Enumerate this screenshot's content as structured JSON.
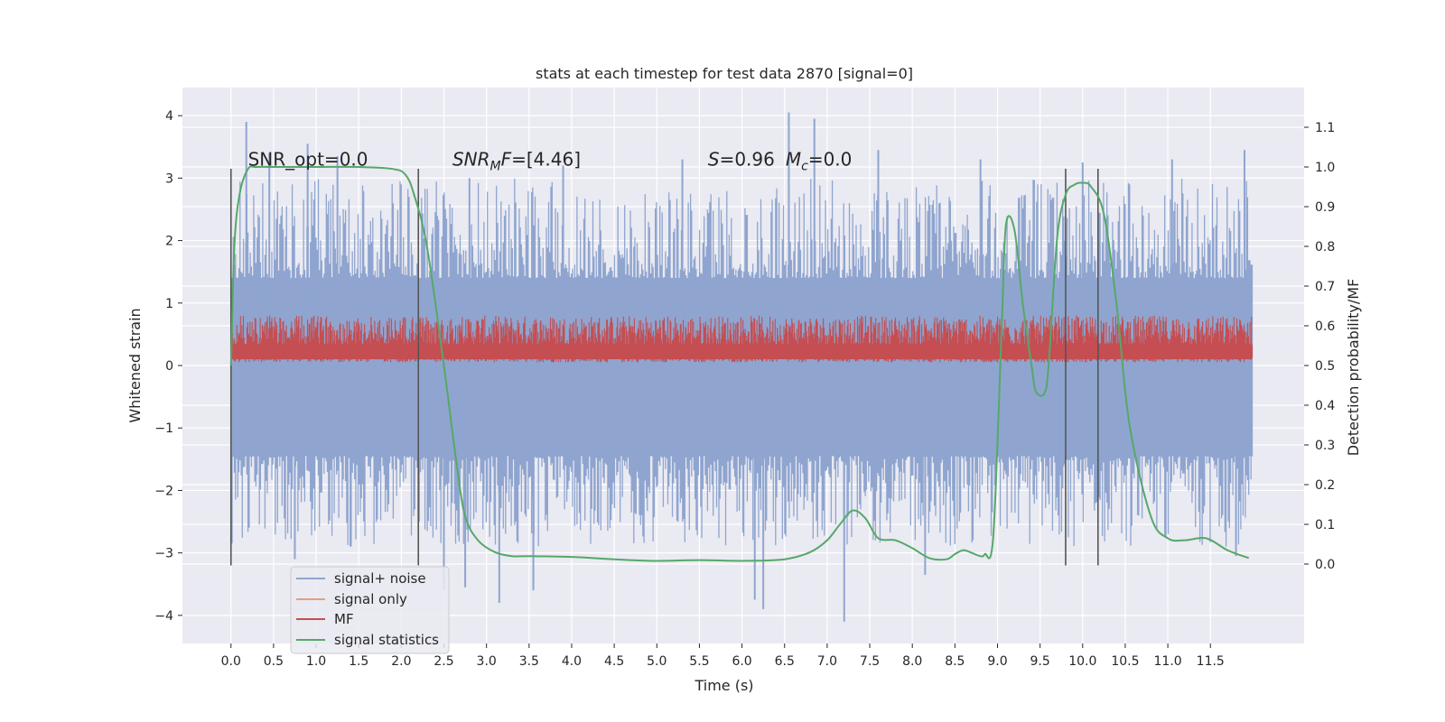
{
  "chart_data": {
    "type": "line",
    "title": "stats at each timestep for test data 2870 [signal=0]",
    "xlabel": "Time (s)",
    "ylabel": "Whitened strain",
    "ylabel_right": "Detection probability/MF",
    "xlim": [
      -0.57,
      12.6
    ],
    "ylim": [
      -4.45,
      4.45
    ],
    "ylim_right": [
      -0.2,
      1.2
    ],
    "x_ticks": [
      0.0,
      0.5,
      1.0,
      1.5,
      2.0,
      2.5,
      3.0,
      3.5,
      4.0,
      4.5,
      5.0,
      5.5,
      6.0,
      6.5,
      7.0,
      7.5,
      8.0,
      8.5,
      9.0,
      9.5,
      10.0,
      10.5,
      11.0,
      11.5
    ],
    "x_tick_labels": [
      "0.0",
      "0.5",
      "1.0",
      "1.5",
      "2.0",
      "2.5",
      "3.0",
      "3.5",
      "4.0",
      "4.5",
      "5.0",
      "5.5",
      "6.0",
      "6.5",
      "7.0",
      "7.5",
      "8.0",
      "8.5",
      "9.0",
      "9.5",
      "10.0",
      "10.5",
      "11.0",
      "11.5"
    ],
    "y_ticks": [
      -4,
      -3,
      -2,
      -1,
      0,
      1,
      2,
      3,
      4
    ],
    "y_tick_labels": [
      "−4",
      "−3",
      "−2",
      "−1",
      "0",
      "1",
      "2",
      "3",
      "4"
    ],
    "y_right_ticks": [
      0.0,
      0.1,
      0.2,
      0.3,
      0.4,
      0.5,
      0.6,
      0.7,
      0.8,
      0.9,
      1.0,
      1.1
    ],
    "y_right_tick_labels": [
      "0.0",
      "0.1",
      "0.2",
      "0.3",
      "0.4",
      "0.5",
      "0.6",
      "0.7",
      "0.8",
      "0.9",
      "1.0",
      "1.1"
    ],
    "grid": true,
    "legend_position": "lower-left",
    "series": [
      {
        "name": "signal+ noise",
        "color": "#8fa5cf",
        "axis": "left",
        "x_range": [
          0.0,
          11.99
        ],
        "envelope_upper": 1.3,
        "envelope_lower": -1.35,
        "peaks": [
          [
            0.18,
            3.9
          ],
          [
            0.45,
            3.4
          ],
          [
            0.9,
            3.55
          ],
          [
            1.25,
            3.35
          ],
          [
            2.8,
            3.0
          ],
          [
            3.9,
            3.2
          ],
          [
            5.3,
            3.3
          ],
          [
            6.55,
            4.05
          ],
          [
            6.85,
            3.95
          ],
          [
            7.6,
            3.45
          ],
          [
            8.8,
            3.3
          ],
          [
            10.0,
            3.25
          ],
          [
            11.05,
            3.3
          ],
          [
            11.9,
            3.45
          ]
        ],
        "troughs": [
          [
            0.75,
            -3.1
          ],
          [
            2.5,
            -3.6
          ],
          [
            2.75,
            -3.55
          ],
          [
            3.15,
            -3.8
          ],
          [
            3.55,
            -3.6
          ],
          [
            6.15,
            -3.75
          ],
          [
            6.25,
            -3.9
          ],
          [
            7.2,
            -4.1
          ],
          [
            8.15,
            -3.35
          ],
          [
            11.8,
            -3.05
          ]
        ]
      },
      {
        "name": "signal only",
        "color": "#e69e7e",
        "axis": "left",
        "x": [],
        "values": []
      },
      {
        "name": "MF",
        "color": "#c44e52",
        "axis": "left",
        "x_range": [
          0.0,
          11.99
        ],
        "band_lower": 0.05,
        "band_upper": 0.55,
        "max_peak": 0.8
      },
      {
        "name": "signal statistics",
        "color": "#55a868",
        "axis": "right",
        "x": [
          0.0,
          0.04,
          0.1,
          0.2,
          0.3,
          0.5,
          1.0,
          1.5,
          1.9,
          2.05,
          2.15,
          2.3,
          2.5,
          2.65,
          2.75,
          2.9,
          3.1,
          3.3,
          3.5,
          4.0,
          4.5,
          5.0,
          5.5,
          6.0,
          6.5,
          6.8,
          7.0,
          7.15,
          7.3,
          7.45,
          7.6,
          7.8,
          8.0,
          8.2,
          8.4,
          8.5,
          8.6,
          8.7,
          8.8,
          8.85,
          8.95,
          9.05,
          9.1,
          9.2,
          9.3,
          9.4,
          9.45,
          9.55,
          9.6,
          9.7,
          9.8,
          9.9,
          10.0,
          10.1,
          10.25,
          10.4,
          10.55,
          10.8,
          11.0,
          11.2,
          11.45,
          11.7,
          11.95
        ],
        "values": [
          0.5,
          0.8,
          0.93,
          0.995,
          1.0,
          1.0,
          1.0,
          1.0,
          0.995,
          0.98,
          0.93,
          0.8,
          0.5,
          0.25,
          0.12,
          0.06,
          0.03,
          0.02,
          0.02,
          0.018,
          0.012,
          0.008,
          0.01,
          0.008,
          0.012,
          0.03,
          0.06,
          0.1,
          0.135,
          0.115,
          0.065,
          0.06,
          0.04,
          0.015,
          0.012,
          0.025,
          0.035,
          0.028,
          0.02,
          0.025,
          0.07,
          0.6,
          0.855,
          0.84,
          0.65,
          0.5,
          0.435,
          0.43,
          0.5,
          0.82,
          0.93,
          0.955,
          0.96,
          0.95,
          0.88,
          0.65,
          0.35,
          0.12,
          0.065,
          0.06,
          0.065,
          0.035,
          0.015
        ]
      }
    ],
    "vertical_lines": [
      {
        "x": 0.0,
        "y_range": [
          -3.2,
          3.15
        ]
      },
      {
        "x": 2.2,
        "y_range": [
          -3.2,
          3.15
        ]
      },
      {
        "x": 9.8,
        "y_range": [
          -3.2,
          3.15
        ]
      },
      {
        "x": 10.18,
        "y_range": [
          -3.2,
          3.15
        ]
      }
    ],
    "annotations": [
      {
        "id": "snr-opt",
        "text": "SNR_opt=0.0",
        "x": 0.2,
        "y": 3.2
      },
      {
        "id": "snr-mf",
        "text": "SNR_MF=[4.46]",
        "x": 2.6,
        "y": 3.2
      },
      {
        "id": "overlap",
        "text": "S=0.96   M_c=0.0",
        "x": 5.6,
        "y": 3.2
      }
    ]
  },
  "colors": {
    "plot_background": "#eaeaf2",
    "grid": "#ffffff",
    "vline": "#555555"
  }
}
